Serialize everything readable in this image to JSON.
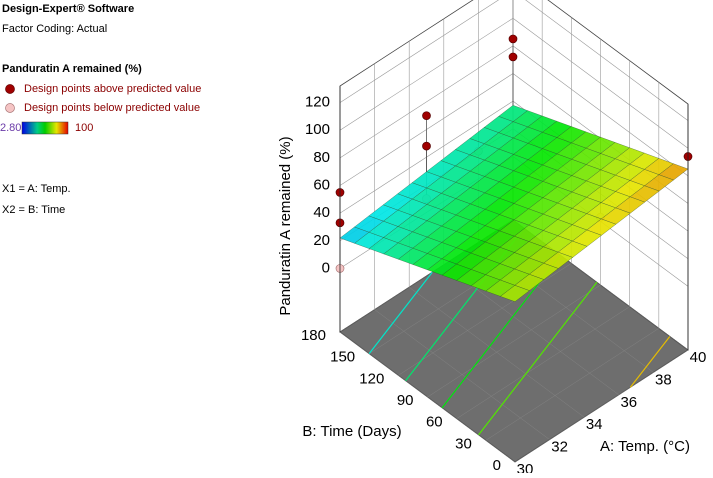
{
  "chart_data": {
    "type": "surface3d",
    "software": "Design-Expert® Software",
    "factor_coding": "Factor Coding: Actual",
    "response": "Panduratin A remained (%)",
    "legend": {
      "above": "Design points above predicted value",
      "below": "Design points below predicted value",
      "above_color": "#a00000",
      "below_color": "#f5c4c4"
    },
    "color_range": {
      "min": {
        "value": 2.8,
        "label": "2.80"
      },
      "max": 100
    },
    "factors": [
      "X1 = A: Temp.",
      "X2 = B: Time"
    ],
    "xlabel": "A: Temp. (°C)",
    "ylabel": "B: Time (Days)",
    "zlabel": "Panduratin A remained (%)",
    "xlim": [
      30,
      40
    ],
    "xticks": [
      30,
      32,
      34,
      36,
      38,
      40
    ],
    "ylim": [
      0,
      180
    ],
    "yticks": [
      0,
      30,
      60,
      90,
      120,
      150,
      180
    ],
    "zlim": [
      -46,
      132
    ],
    "zticks": [
      0,
      20,
      40,
      60,
      80,
      100,
      120
    ],
    "surface": {
      "x": [
        30,
        40
      ],
      "y": [
        0,
        180
      ],
      "z": [
        [
          70,
          22
        ],
        [
          85,
          37
        ]
      ]
    },
    "contour_levels": [
      30,
      40,
      50,
      60,
      70,
      80
    ],
    "points": {
      "x": [
        30,
        30,
        30,
        35,
        35,
        35,
        38,
        40,
        40,
        40,
        40
      ],
      "y": [
        180,
        180,
        180,
        180,
        180,
        180,
        180,
        180,
        180,
        90,
        0
      ],
      "z": [
        55,
        33,
        0,
        70,
        48,
        10,
        20,
        85,
        72,
        3,
        94
      ],
      "position": [
        "above",
        "above",
        "below",
        "above",
        "above",
        "below",
        "below",
        "above",
        "above",
        "below",
        "above"
      ]
    }
  }
}
